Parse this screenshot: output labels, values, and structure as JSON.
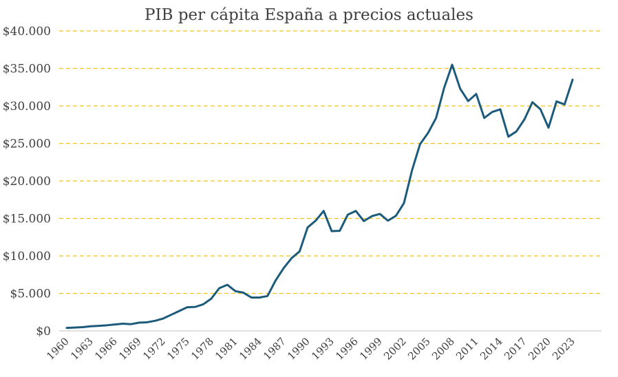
{
  "chart_data": {
    "type": "line",
    "title": "PIB per cápita España a precios actuales",
    "xlabel": "",
    "ylabel": "",
    "ylim": [
      0,
      40000
    ],
    "grid": true,
    "colors": {
      "line": "#1b5a7a",
      "grid": "#f2c219"
    },
    "y_ticks": [
      {
        "value": 0,
        "label": "$0"
      },
      {
        "value": 5000,
        "label": "$5.000"
      },
      {
        "value": 10000,
        "label": "$10.000"
      },
      {
        "value": 15000,
        "label": "$15.000"
      },
      {
        "value": 20000,
        "label": "$20.000"
      },
      {
        "value": 25000,
        "label": "$25.000"
      },
      {
        "value": 30000,
        "label": "$30.000"
      },
      {
        "value": 35000,
        "label": "$35.000"
      },
      {
        "value": 40000,
        "label": "$40.000"
      }
    ],
    "x_tick_labels": [
      "1960",
      "1963",
      "1966",
      "1969",
      "1972",
      "1975",
      "1978",
      "1981",
      "1984",
      "1987",
      "1990",
      "1993",
      "1996",
      "1999",
      "2002",
      "2005",
      "2008",
      "2011",
      "2014",
      "2017",
      "2020",
      "2023"
    ],
    "series": [
      {
        "name": "PIB per cápita",
        "x": [
          1960,
          1961,
          1962,
          1963,
          1964,
          1965,
          1966,
          1967,
          1968,
          1969,
          1970,
          1971,
          1972,
          1973,
          1974,
          1975,
          1976,
          1977,
          1978,
          1979,
          1980,
          1981,
          1982,
          1983,
          1984,
          1985,
          1986,
          1987,
          1988,
          1989,
          1990,
          1991,
          1992,
          1993,
          1994,
          1995,
          1996,
          1997,
          1998,
          1999,
          2000,
          2001,
          2002,
          2003,
          2004,
          2005,
          2006,
          2007,
          2008,
          2009,
          2010,
          2011,
          2012,
          2013,
          2014,
          2015,
          2016,
          2017,
          2018,
          2019,
          2020,
          2021,
          2022,
          2023
        ],
        "values": [
          400,
          450,
          500,
          620,
          680,
          750,
          860,
          960,
          900,
          1100,
          1150,
          1350,
          1650,
          2150,
          2650,
          3150,
          3200,
          3550,
          4300,
          5700,
          6150,
          5300,
          5100,
          4450,
          4450,
          4650,
          6700,
          8350,
          9700,
          10600,
          13800,
          14700,
          16000,
          13300,
          13350,
          15500,
          16000,
          14650,
          15300,
          15600,
          14700,
          15350,
          17050,
          21400,
          24900,
          26400,
          28400,
          32400,
          35500,
          32300,
          30650,
          31600,
          28400,
          29200,
          29550,
          25900,
          26600,
          28200,
          30500,
          29550,
          27100,
          30600,
          30200,
          33500
        ]
      }
    ]
  }
}
